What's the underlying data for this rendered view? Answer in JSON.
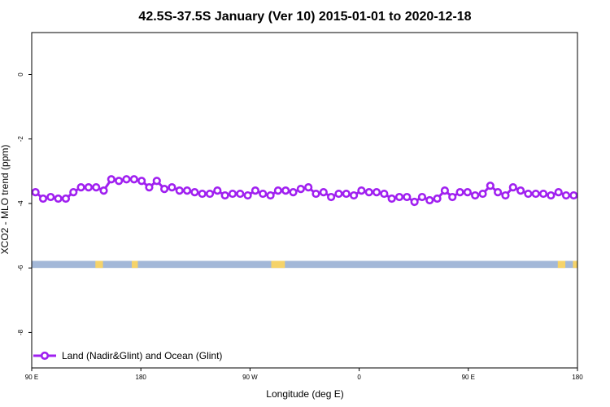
{
  "chart_data": {
    "type": "line",
    "title": "42.5S-37.5S January (Ver 10)   2015-01-01 to 2020-12-18",
    "xlabel": "Longitude (deg E)",
    "ylabel": "XCO2 - MLO trend (ppm)",
    "xlim": [
      90,
      450
    ],
    "ylim": [
      -9.1,
      1.3
    ],
    "x_ticks": [
      {
        "value": 90,
        "label": "90 E"
      },
      {
        "value": 162,
        "label": "180"
      },
      {
        "value": 234,
        "label": "90 W"
      },
      {
        "value": 306,
        "label": "0"
      },
      {
        "value": 378,
        "label": "90 E"
      },
      {
        "value": 450,
        "label": "180"
      }
    ],
    "y_ticks": [
      {
        "value": 0,
        "label": "0"
      },
      {
        "value": -2,
        "label": "-2"
      },
      {
        "value": -4,
        "label": "-4"
      },
      {
        "value": -6,
        "label": "-6"
      },
      {
        "value": -8,
        "label": "-8"
      }
    ],
    "legend": {
      "position": "bottom-left",
      "label": "Land (Nadir&Glint) and Ocean (Glint)"
    },
    "series": [
      {
        "name": "Land (Nadir&Glint) and Ocean (Glint)",
        "color": "#a020f0",
        "x": [
          92.5,
          97.5,
          102.5,
          107.5,
          112.5,
          117.5,
          122.5,
          127.5,
          132.5,
          137.5,
          142.5,
          147.5,
          152.5,
          157.5,
          162.5,
          167.5,
          172.5,
          177.5,
          182.5,
          187.5,
          192.5,
          197.5,
          202.5,
          207.5,
          212.5,
          217.5,
          222.5,
          227.5,
          232.5,
          237.5,
          242.5,
          247.5,
          252.5,
          257.5,
          262.5,
          267.5,
          272.5,
          277.5,
          282.5,
          287.5,
          292.5,
          297.5,
          302.5,
          307.5,
          312.5,
          317.5,
          322.5,
          327.5,
          332.5,
          337.5,
          342.5,
          347.5,
          352.5,
          357.5,
          362.5,
          367.5,
          372.5,
          377.5,
          382.5,
          387.5,
          392.5,
          397.5,
          402.5,
          407.5,
          412.5,
          417.5,
          422.5,
          427.5,
          432.5,
          437.5,
          442.5,
          447.5
        ],
        "values": [
          -3.65,
          -3.85,
          -3.8,
          -3.85,
          -3.85,
          -3.65,
          -3.5,
          -3.5,
          -3.5,
          -3.6,
          -3.25,
          -3.3,
          -3.25,
          -3.25,
          -3.3,
          -3.5,
          -3.3,
          -3.55,
          -3.5,
          -3.6,
          -3.6,
          -3.65,
          -3.7,
          -3.7,
          -3.6,
          -3.75,
          -3.7,
          -3.7,
          -3.75,
          -3.6,
          -3.7,
          -3.75,
          -3.6,
          -3.6,
          -3.65,
          -3.55,
          -3.5,
          -3.7,
          -3.65,
          -3.8,
          -3.7,
          -3.7,
          -3.75,
          -3.6,
          -3.65,
          -3.65,
          -3.7,
          -3.85,
          -3.8,
          -3.8,
          -3.95,
          -3.8,
          -3.9,
          -3.85,
          -3.6,
          -3.8,
          -3.65,
          -3.65,
          -3.75,
          -3.7,
          -3.45,
          -3.65,
          -3.75,
          -3.5,
          -3.6,
          -3.7,
          -3.7,
          -3.7,
          -3.75,
          -3.65,
          -3.75,
          -3.75
        ]
      }
    ],
    "bands": [
      {
        "name": "ocean",
        "color": "#a3b8d8",
        "y_range": [
          -5.78,
          -6.0
        ],
        "x_range": [
          90,
          450
        ]
      },
      {
        "name": "land",
        "color": "#f5d36a",
        "y_range": [
          -5.78,
          -6.0
        ],
        "segments": [
          [
            132,
            137
          ],
          [
            156,
            160
          ],
          [
            248,
            257
          ],
          [
            437,
            442
          ],
          [
            447,
            450
          ]
        ]
      }
    ]
  }
}
